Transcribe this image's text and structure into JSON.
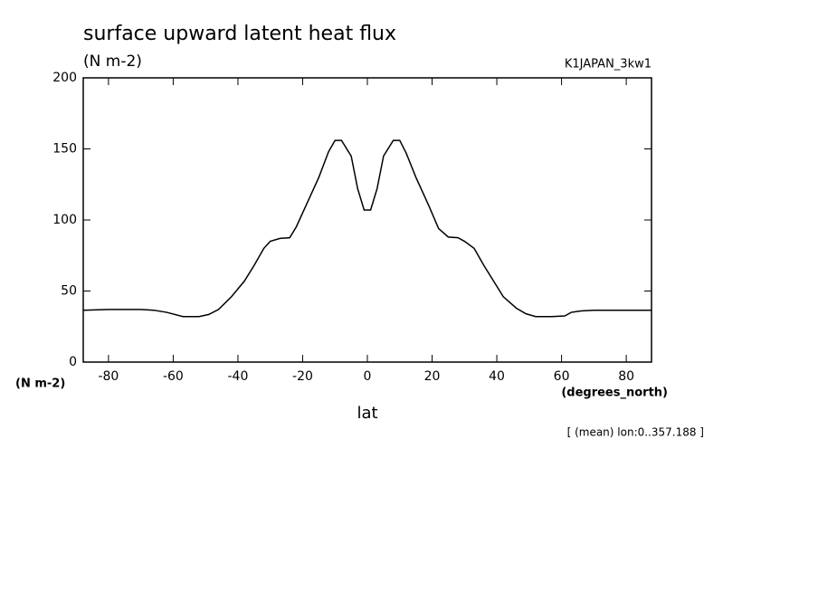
{
  "chart_data": {
    "type": "line",
    "title": "surface upward latent heat flux",
    "subtitle": "(N m-2)",
    "dataset_label": "K1JAPAN_3kw1",
    "y_unit_label": "(N m-2)",
    "x_unit_label": "(degrees_north)",
    "x_label": "lat",
    "note": "[ (mean) lon:0..357.188 ]",
    "xlim": [
      -87.8,
      87.8
    ],
    "ylim": [
      0,
      200
    ],
    "xticks": [
      -80,
      -60,
      -40,
      -20,
      0,
      20,
      40,
      60,
      80
    ],
    "yticks": [
      0,
      50,
      100,
      150,
      200
    ],
    "x": [
      -87.8,
      -80,
      -70,
      -66,
      -62,
      -57,
      -52,
      -49,
      -46,
      -42,
      -38,
      -35,
      -32,
      -30,
      -27,
      -24,
      -22,
      -19,
      -15,
      -12,
      -10,
      -8,
      -5,
      -3,
      -1,
      1,
      3,
      5,
      8,
      10,
      12,
      15,
      19,
      22,
      25,
      28,
      30,
      33,
      36,
      39,
      42,
      46,
      49,
      52,
      57,
      61,
      63,
      66,
      70,
      80,
      87.8
    ],
    "series": [
      {
        "color": "#000000",
        "values": [
          36.5,
          37,
          37,
          36.5,
          35,
          32,
          32,
          33.5,
          37,
          46,
          57,
          68,
          80,
          85,
          87,
          87.5,
          95,
          110,
          130,
          148,
          156,
          156,
          145,
          122,
          107,
          107,
          122,
          145,
          156,
          156,
          147,
          130,
          110,
          94,
          88,
          87.5,
          85,
          80,
          68,
          57,
          46,
          38,
          34,
          32,
          32,
          32.5,
          35,
          36,
          36.5,
          36.5,
          36.5
        ]
      }
    ]
  }
}
